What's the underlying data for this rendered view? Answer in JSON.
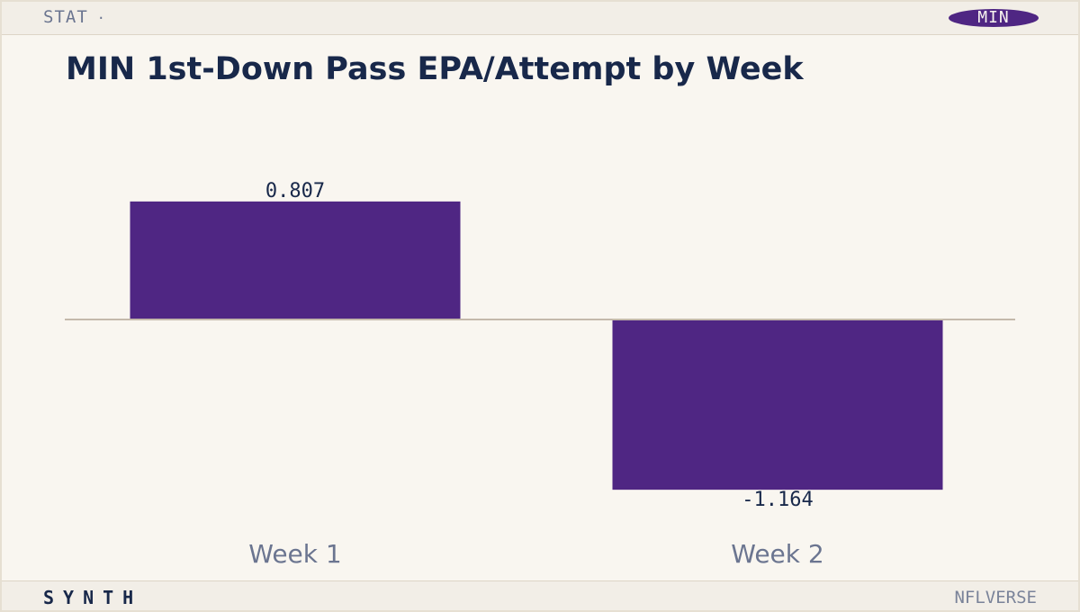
{
  "header": {
    "label": "STAT",
    "separator": "·",
    "team_badge": "MIN"
  },
  "footer": {
    "brand": "SYNTH",
    "source": "NFLVERSE"
  },
  "colors": {
    "team_primary": "#4f2683",
    "title": "#18284a",
    "baseline": "#c4b9ab",
    "tick_label": "#6b7590"
  },
  "chart_data": {
    "type": "bar",
    "title": "MIN 1st-Down Pass EPA/Attempt by Week",
    "categories": [
      "Week 1",
      "Week 2"
    ],
    "values": [
      0.807,
      -1.164
    ],
    "data_labels": [
      "0.807",
      "-1.164"
    ],
    "xlabel": "",
    "ylabel": "",
    "grid": false,
    "legend": "none"
  }
}
